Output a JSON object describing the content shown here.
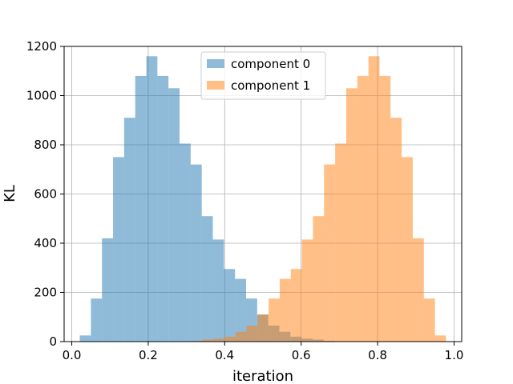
{
  "chart_data": {
    "type": "histogram",
    "title": "",
    "xlabel": "iteration",
    "ylabel": "KL",
    "xlim": [
      -0.02,
      1.02
    ],
    "ylim": [
      0,
      1200
    ],
    "xticks": [
      0.0,
      0.2,
      0.4,
      0.6,
      0.8,
      1.0
    ],
    "xtick_labels": [
      "0.0",
      "0.2",
      "0.4",
      "0.6",
      "0.8",
      "1.0"
    ],
    "yticks": [
      0,
      200,
      400,
      600,
      800,
      1000,
      1200
    ],
    "ytick_labels": [
      "0",
      "200",
      "400",
      "600",
      "800",
      "1000",
      "1200"
    ],
    "grid": true,
    "legend_position": "upper-center",
    "series": [
      {
        "name": "component 0",
        "color": "#1f77b4",
        "opacity": 0.5,
        "bin_edges": [
          0.021,
          0.05,
          0.079,
          0.108,
          0.137,
          0.166,
          0.195,
          0.224,
          0.253,
          0.282,
          0.311,
          0.34,
          0.369,
          0.398,
          0.427,
          0.456,
          0.485,
          0.514,
          0.543,
          0.572,
          0.601,
          0.63,
          0.659,
          0.688
        ],
        "counts": [
          25,
          175,
          420,
          750,
          910,
          1080,
          1160,
          1080,
          1030,
          805,
          720,
          510,
          415,
          295,
          255,
          175,
          110,
          65,
          40,
          20,
          12,
          8,
          3
        ]
      },
      {
        "name": "component 1",
        "color": "#ff7f0e",
        "opacity": 0.5,
        "bin_edges": [
          0.312,
          0.341,
          0.37,
          0.399,
          0.428,
          0.457,
          0.486,
          0.515,
          0.544,
          0.573,
          0.602,
          0.631,
          0.66,
          0.689,
          0.718,
          0.747,
          0.776,
          0.805,
          0.834,
          0.863,
          0.892,
          0.921,
          0.95,
          0.979
        ],
        "counts": [
          3,
          8,
          12,
          20,
          40,
          65,
          110,
          175,
          255,
          295,
          415,
          510,
          720,
          805,
          1030,
          1080,
          1160,
          1080,
          910,
          750,
          420,
          175,
          25
        ]
      }
    ]
  }
}
